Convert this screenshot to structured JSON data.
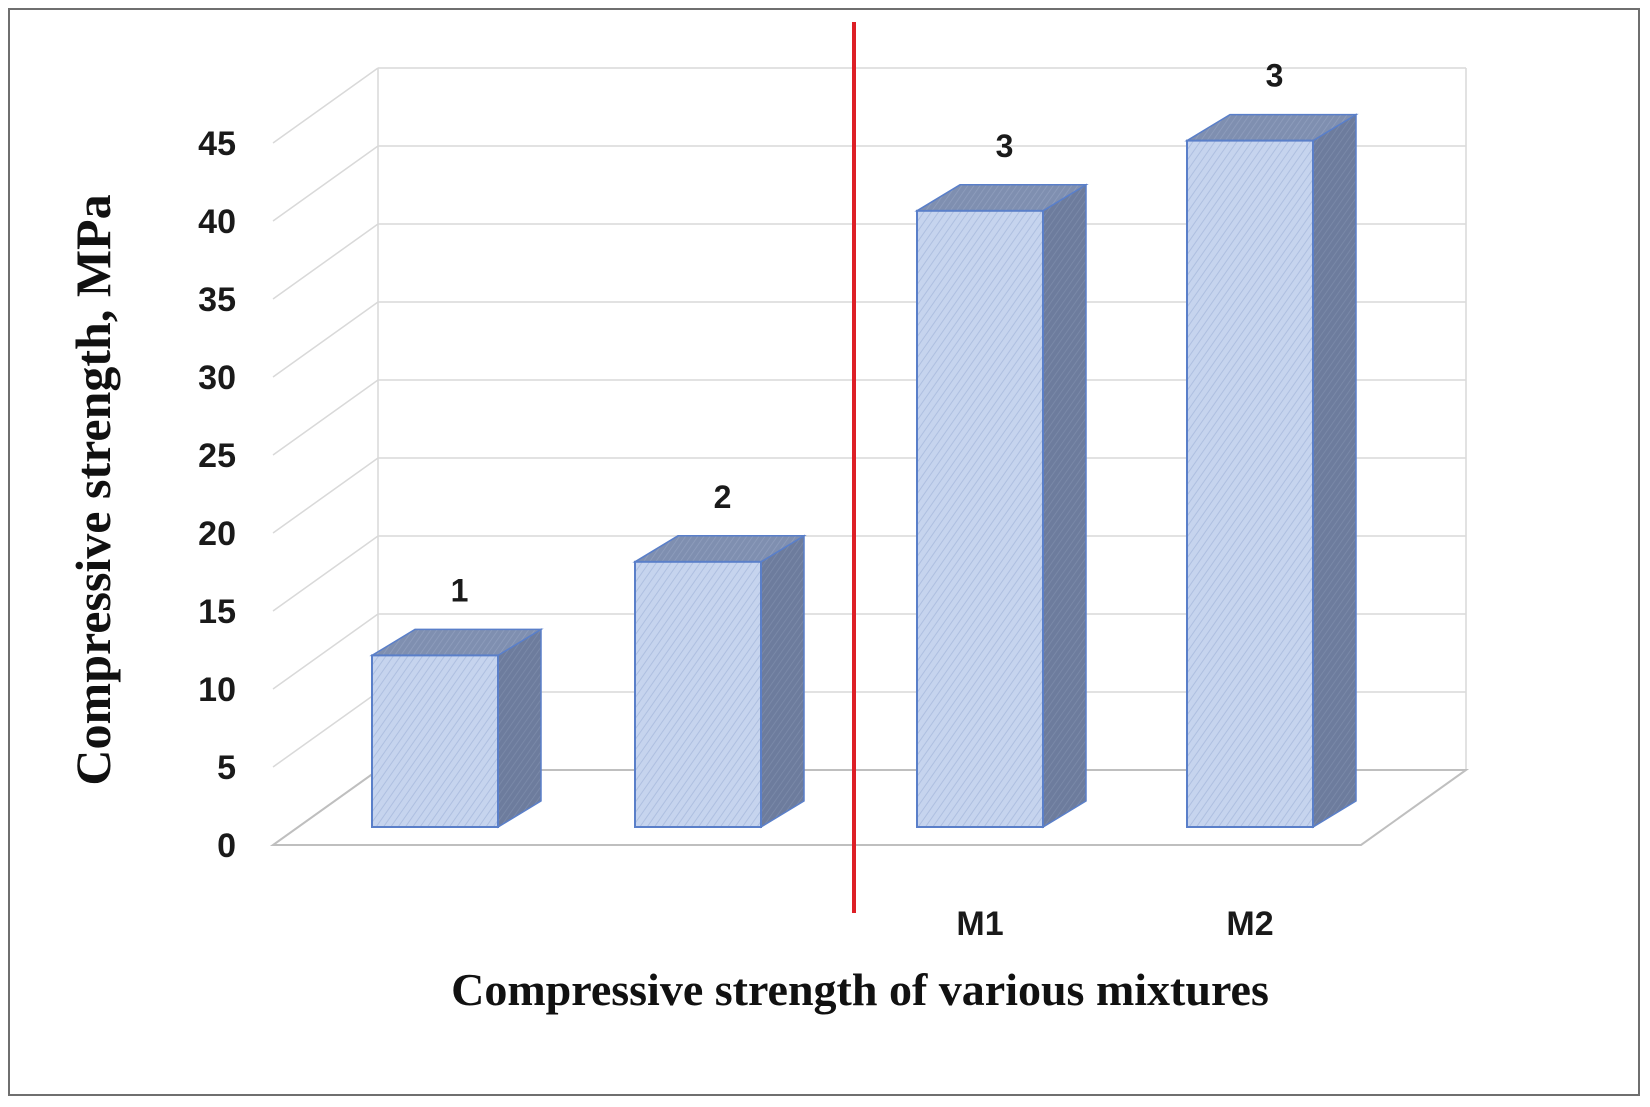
{
  "chart_data": {
    "type": "bar",
    "style": "3d-column",
    "categories": [
      "",
      "",
      "M1",
      "M2"
    ],
    "values": [
      11,
      17,
      39.5,
      44
    ],
    "data_labels": [
      "1",
      "2",
      "3",
      "3"
    ],
    "xlabel": "Compressive strength of various mixtures",
    "ylabel": "Compressive strength, MPa",
    "ylim": [
      0,
      45
    ],
    "yticks": [
      "0",
      "5",
      "10",
      "15",
      "20",
      "25",
      "30",
      "35",
      "40",
      "45"
    ],
    "grid": true,
    "legend": "none",
    "separator": {
      "position_between_categories": [
        2,
        3
      ],
      "color": "#dd1f26"
    },
    "colors": {
      "bar_front": "#c6d4ee",
      "bar_top": "#7f8fb0",
      "bar_side": "#6d7c9d",
      "bar_edge": "#5a7fc9",
      "grid": "#d9d9d9"
    }
  }
}
